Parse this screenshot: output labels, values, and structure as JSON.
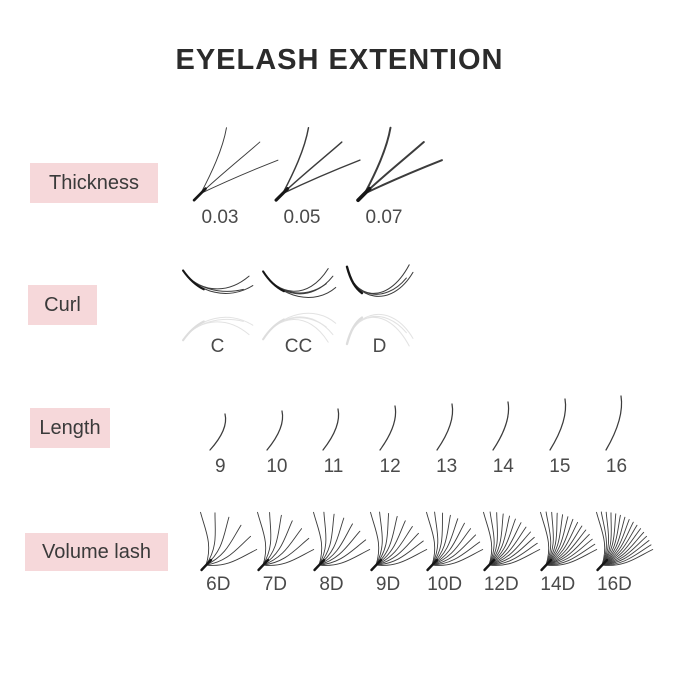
{
  "title": "EYELASH EXTENTION",
  "colors": {
    "label_bg": "#f6d8da",
    "title_text": "#2b2b2b",
    "label_text": "#3a3a3a",
    "value_text": "#4a4a4a",
    "lash_stroke": "#3c3c3c",
    "lash_base": "#161616"
  },
  "sections": {
    "thickness": {
      "label": "Thickness",
      "values": [
        "0.03",
        "0.05",
        "0.07"
      ],
      "stroke_widths": [
        1.0,
        1.5,
        2.1
      ]
    },
    "curl": {
      "label": "Curl",
      "values": [
        "C",
        "CC",
        "D"
      ]
    },
    "length": {
      "label": "Length",
      "values": [
        "9",
        "10",
        "11",
        "12",
        "13",
        "14",
        "15",
        "16"
      ],
      "heights": [
        40,
        43,
        45,
        48,
        50,
        52,
        55,
        58
      ]
    },
    "volume": {
      "label": "Volume lash",
      "values": [
        "6D",
        "7D",
        "8D",
        "9D",
        "10D",
        "12D",
        "14D",
        "16D"
      ],
      "strand_counts": [
        6,
        7,
        8,
        9,
        10,
        12,
        14,
        16
      ]
    }
  }
}
